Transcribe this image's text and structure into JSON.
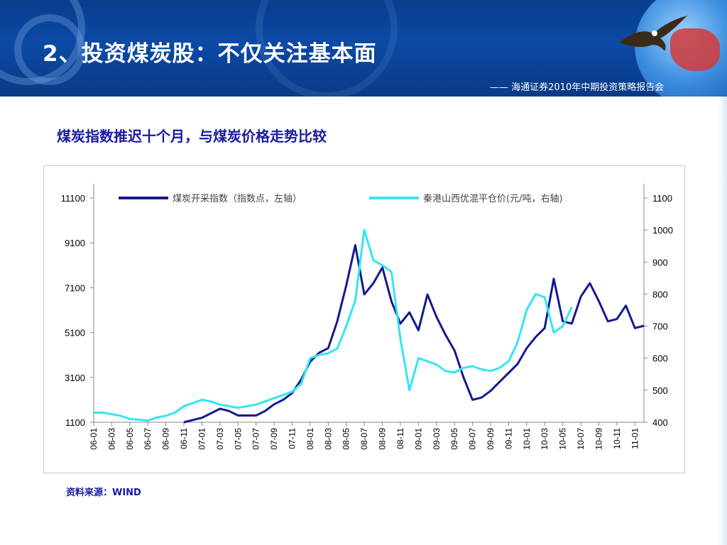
{
  "slide": {
    "title": "2、投资煤炭股：不仅关注基本面",
    "report_tag": "—— 海通证券2010年中期投资策略报告会",
    "subtitle": "煤炭指数推迟十个月，与煤炭价格走势比较",
    "source": "资料来源：WIND"
  },
  "colors": {
    "header": "#0b4aa6",
    "series_index": "#141a8c",
    "series_price": "#33e6f0",
    "subtitle": "#1a1aa0"
  },
  "chart_data": {
    "type": "line",
    "x_tick_labels": [
      "06-01",
      "06-03",
      "06-05",
      "06-07",
      "06-09",
      "06-11",
      "07-01",
      "07-03",
      "07-05",
      "07-07",
      "07-09",
      "07-11",
      "08-01",
      "08-03",
      "08-05",
      "08-07",
      "08-09",
      "08-11",
      "09-01",
      "09-03",
      "09-05",
      "09-07",
      "09-09",
      "09-11",
      "10-01",
      "10-03",
      "10-05",
      "10-07",
      "10-09",
      "10-11",
      "11-01"
    ],
    "y_left": {
      "ticks": [
        1100,
        3100,
        5100,
        7100,
        9100,
        11100
      ],
      "range": [
        1100,
        11100
      ]
    },
    "y_right": {
      "ticks": [
        400,
        500,
        600,
        700,
        800,
        900,
        1000,
        1100
      ],
      "range": [
        400,
        1100
      ]
    },
    "series": [
      {
        "name": "煤炭开采指数（指数点，左轴）",
        "axis": "left",
        "x": [
          "06-11",
          "06-12",
          "07-01",
          "07-02",
          "07-03",
          "07-04",
          "07-05",
          "07-06",
          "07-07",
          "07-08",
          "07-09",
          "07-10",
          "07-11",
          "07-12",
          "08-01",
          "08-02",
          "08-03",
          "08-04",
          "08-05",
          "08-06",
          "08-07",
          "08-08",
          "08-09",
          "08-10",
          "08-11",
          "08-12",
          "09-01",
          "09-02",
          "09-03",
          "09-04",
          "09-05",
          "09-06",
          "09-07",
          "09-08",
          "09-09",
          "09-10",
          "09-11",
          "09-12",
          "10-01",
          "10-02",
          "10-03",
          "10-04",
          "10-05",
          "10-06",
          "10-07",
          "10-08",
          "10-09",
          "10-10",
          "10-11",
          "10-12",
          "11-01",
          "11-02"
        ],
        "values": [
          1100,
          1200,
          1300,
          1500,
          1700,
          1600,
          1400,
          1400,
          1400,
          1600,
          1900,
          2100,
          2400,
          3000,
          3800,
          4200,
          4400,
          5600,
          7200,
          9000,
          6800,
          7300,
          8000,
          6500,
          5500,
          6000,
          5200,
          6800,
          5800,
          5000,
          4300,
          3100,
          2100,
          2200,
          2500,
          2900,
          3300,
          3700,
          4400,
          4900,
          5300,
          7500,
          5600,
          5500,
          6700,
          7300,
          6500,
          5600,
          5700,
          6300,
          5300,
          5400
        ]
      },
      {
        "name": "秦港山西优混平仓价(元/吨，右轴)",
        "axis": "right",
        "x": [
          "06-01",
          "06-02",
          "06-03",
          "06-04",
          "06-05",
          "06-06",
          "06-07",
          "06-08",
          "06-09",
          "06-10",
          "06-11",
          "06-12",
          "07-01",
          "07-02",
          "07-03",
          "07-04",
          "07-05",
          "07-06",
          "07-07",
          "07-08",
          "07-09",
          "07-10",
          "07-11",
          "07-12",
          "08-01",
          "08-02",
          "08-03",
          "08-04",
          "08-05",
          "08-06",
          "08-07",
          "08-08",
          "08-09",
          "08-10",
          "08-11",
          "08-12",
          "09-01",
          "09-02",
          "09-03",
          "09-04",
          "09-05",
          "09-06",
          "09-07",
          "09-08",
          "09-09",
          "09-10",
          "09-11",
          "09-12",
          "10-01",
          "10-02",
          "10-03",
          "10-04",
          "10-05",
          "10-06"
        ],
        "values": [
          430,
          430,
          425,
          420,
          410,
          408,
          405,
          415,
          420,
          430,
          450,
          460,
          470,
          465,
          455,
          450,
          445,
          450,
          455,
          465,
          475,
          485,
          495,
          520,
          600,
          610,
          615,
          630,
          700,
          780,
          1000,
          905,
          890,
          870,
          660,
          500,
          600,
          590,
          580,
          560,
          555,
          570,
          575,
          565,
          560,
          570,
          590,
          650,
          750,
          800,
          790,
          680,
          700,
          760
        ]
      }
    ],
    "legend_position": "top"
  }
}
